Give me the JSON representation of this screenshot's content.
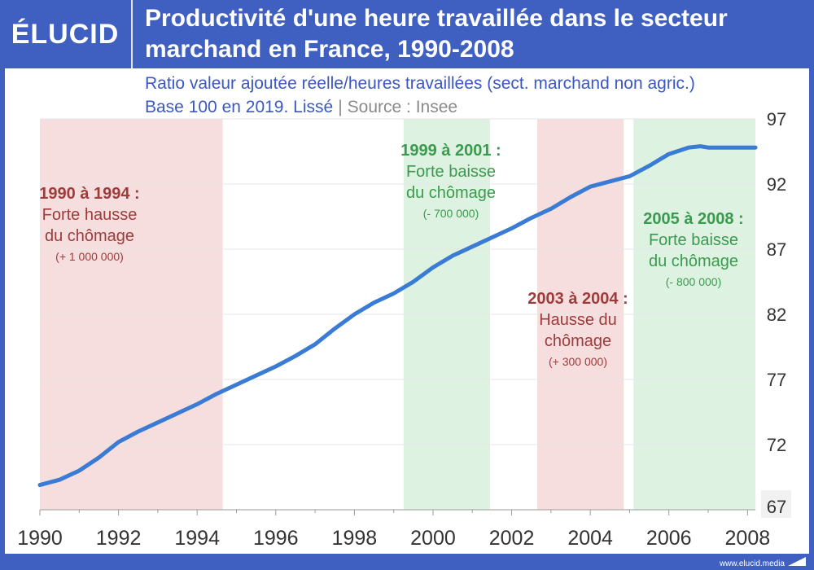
{
  "brand": {
    "logo_text": "ÉLUCID",
    "footer_url": "www.elucid.media"
  },
  "header": {
    "title_line1": "Productivité d'une heure travaillée dans le secteur",
    "title_line2": "marchand en France, 1990-2008"
  },
  "subtitle": {
    "line1": "Ratio valeur ajoutée réelle/heures travaillées (sect. marchand non agric.)",
    "line2": "Base 100 en 2019. Lissé",
    "separator": "|",
    "source": "Source : Insee"
  },
  "colors": {
    "header_bg": "#3f5fc1",
    "line": "#3a7bd5",
    "shade_red": "#f6dede",
    "shade_green": "#ddf2e1",
    "text_red": "#9e3b3b",
    "text_green": "#3a9a4e",
    "subtitle_blue": "#3a58c0"
  },
  "chart_data": {
    "type": "line",
    "x_ticks": [
      1990,
      1992,
      1994,
      1996,
      1998,
      2000,
      2002,
      2004,
      2006,
      2008
    ],
    "y_ticks": [
      67,
      72,
      77,
      82,
      87,
      92,
      97
    ],
    "xlim": [
      1990,
      2008.2
    ],
    "ylim": [
      67,
      97
    ],
    "y_axis_side": "right",
    "grid": true,
    "series": [
      {
        "x": [
          1990,
          1990.5,
          1991,
          1991.5,
          1992,
          1992.5,
          1993,
          1993.5,
          1994,
          1994.5,
          1995,
          1995.5,
          1996,
          1996.5,
          1997,
          1997.5,
          1998,
          1998.5,
          1999,
          1999.5,
          2000,
          2000.5,
          2001,
          2001.5,
          2002,
          2002.5,
          2003,
          2003.5,
          2004,
          2004.5,
          2005,
          2005.5,
          2006,
          2006.5,
          2006.8,
          2007,
          2007.5,
          2008,
          2008.2
        ],
        "y": [
          68.9,
          69.3,
          70.0,
          71.0,
          72.2,
          73.0,
          73.7,
          74.4,
          75.1,
          75.9,
          76.6,
          77.3,
          78.0,
          78.8,
          79.7,
          80.9,
          82.0,
          82.9,
          83.6,
          84.5,
          85.6,
          86.5,
          87.2,
          87.9,
          88.6,
          89.4,
          90.1,
          91.0,
          91.8,
          92.2,
          92.6,
          93.4,
          94.3,
          94.8,
          94.9,
          94.8,
          94.8,
          94.8,
          94.8
        ]
      }
    ],
    "periods": [
      {
        "kind": "red",
        "start": 1990,
        "end": 1994.65,
        "label_lines": [
          "1990 à 1994 :",
          "Forte hausse",
          "du chômage"
        ],
        "note": "(+ 1 000 000)"
      },
      {
        "kind": "green",
        "start": 1999.25,
        "end": 2001.45,
        "label_lines": [
          "1999 à 2001 :",
          "Forte baisse",
          "du chômage"
        ],
        "note": "(- 700 000)"
      },
      {
        "kind": "red",
        "start": 2002.65,
        "end": 2004.85,
        "label_lines": [
          "2003 à 2004 :",
          "Hausse du",
          "chômage"
        ],
        "note": "(+ 300 000)"
      },
      {
        "kind": "green",
        "start": 2005.1,
        "end": 2008.2,
        "label_lines": [
          "2005 à 2008 :",
          "Forte baisse",
          "du chômage"
        ],
        "note": "(- 800 000)"
      }
    ]
  }
}
